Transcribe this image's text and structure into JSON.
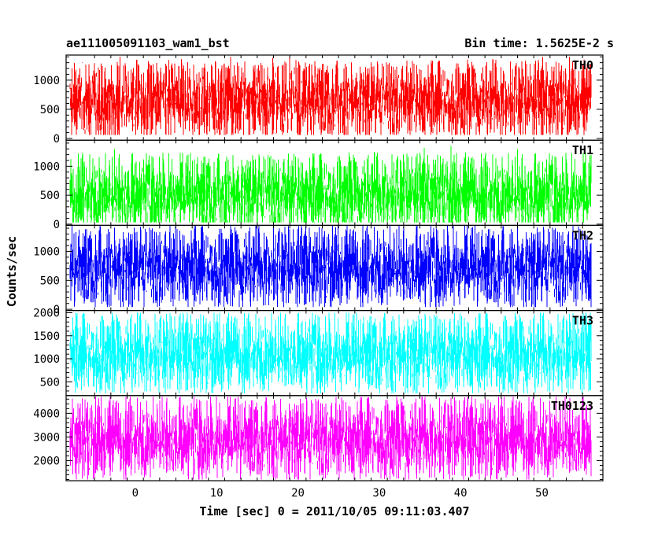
{
  "chart_data": {
    "type": "line",
    "title_left": "ae111005091103_wam1_bst",
    "title_right": "Bin time: 1.5625E-2 s",
    "xlabel": "Time [sec] 0 = 2011/10/05 09:11:03.407",
    "ylabel": "Counts/sec",
    "xlim": [
      -8.5,
      57.5
    ],
    "data_x_range": [
      -8,
      56
    ],
    "x_ticks": [
      0,
      10,
      20,
      30,
      40,
      50
    ],
    "bin_time_s": 0.015625,
    "grid": false,
    "panels": [
      {
        "name": "TH0",
        "color": "#ff0000",
        "ylim": [
          -30,
          1430
        ],
        "y_ticks": [
          0,
          500,
          1000
        ],
        "mean": 650,
        "min": 60,
        "max": 1400
      },
      {
        "name": "TH1",
        "color": "#00ff00",
        "ylim": [
          -20,
          1450
        ],
        "y_ticks": [
          0,
          500,
          1000
        ],
        "mean": 520,
        "min": 30,
        "max": 1400
      },
      {
        "name": "TH2",
        "color": "#0000ff",
        "ylim": [
          -20,
          1450
        ],
        "y_ticks": [
          0,
          500,
          1000
        ],
        "mean": 720,
        "min": 40,
        "max": 1450
      },
      {
        "name": "TH3",
        "color": "#00ffff",
        "ylim": [
          200,
          2050
        ],
        "y_ticks": [
          500,
          1000,
          1500,
          2000
        ],
        "mean": 1100,
        "min": 250,
        "max": 2000
      },
      {
        "name": "TH0123",
        "color": "#ff00ff",
        "ylim": [
          1150,
          4750
        ],
        "y_ticks": [
          2000,
          3000,
          4000
        ],
        "mean": 2900,
        "min": 1200,
        "max": 4700
      }
    ]
  }
}
